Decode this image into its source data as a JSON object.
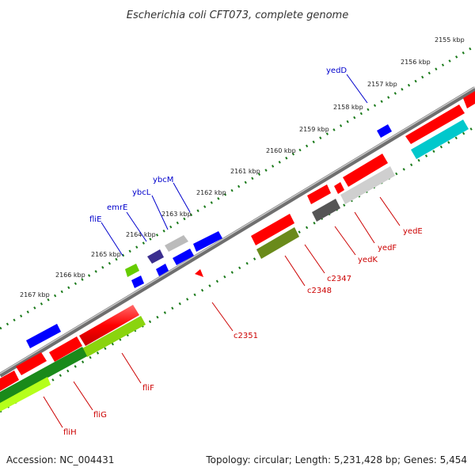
{
  "title": "Escherichia coli CFT073, complete genome",
  "footer": {
    "accession": "Accession: NC_004431",
    "summary": "Topology: circular; Length: 5,231,428 bp; Genes: 5,454"
  },
  "colors": {
    "forward_gene": "#ff0000",
    "reverse_gene": "#ff0000",
    "blue_gene": "#0000ff",
    "backbone": "#8a8a8a",
    "tick": "#1a7a1a",
    "label_blue": "#0000cc",
    "label_red": "#cc0000"
  },
  "ticks": [
    "2155 kbp",
    "2156 kbp",
    "2157 kbp",
    "2158 kbp",
    "2159 kbp",
    "2160 kbp",
    "2161 kbp",
    "2162 kbp",
    "2163 kbp",
    "2164 kbp",
    "2165 kbp",
    "2166 kbp",
    "2167 kbp"
  ],
  "labels_top": [
    "yedD",
    "ybcM",
    "ybcL",
    "emrE",
    "fliE"
  ],
  "labels_bottom": [
    "yedE",
    "yedF",
    "yedK",
    "c2347",
    "c2348",
    "c2351",
    "fliF",
    "fliG",
    "fliH"
  ]
}
